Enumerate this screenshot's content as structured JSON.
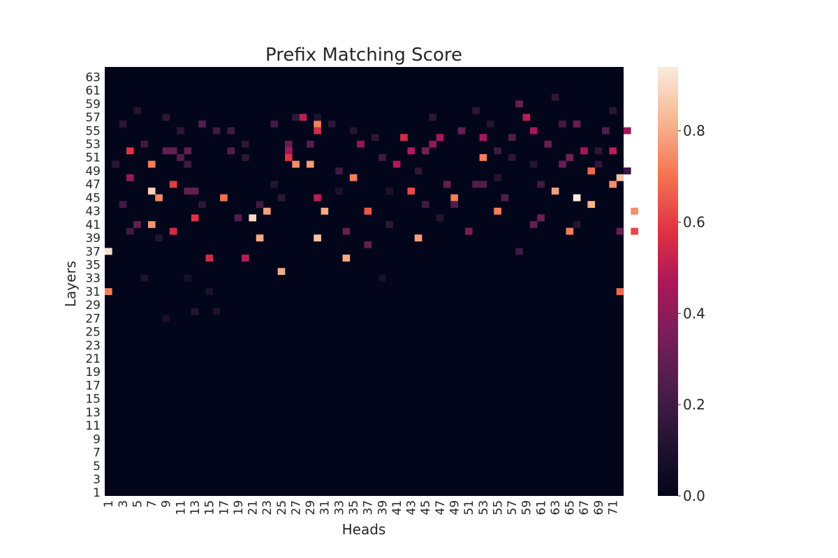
{
  "chart_data": {
    "type": "heatmap",
    "title": "Prefix Matching Score",
    "xlabel": "Heads",
    "ylabel": "Layers",
    "x": {
      "min": 1,
      "max": 72,
      "tick_values": [
        1,
        3,
        5,
        7,
        9,
        11,
        13,
        15,
        17,
        19,
        21,
        23,
        25,
        27,
        29,
        31,
        33,
        35,
        37,
        39,
        41,
        43,
        45,
        47,
        49,
        51,
        53,
        55,
        57,
        59,
        61,
        63,
        65,
        67,
        69,
        71
      ]
    },
    "y": {
      "min": 1,
      "max": 64,
      "tick_values": [
        1,
        3,
        5,
        7,
        9,
        11,
        13,
        15,
        17,
        19,
        21,
        23,
        25,
        27,
        29,
        31,
        33,
        35,
        37,
        39,
        41,
        43,
        45,
        47,
        49,
        51,
        53,
        55,
        57,
        59,
        61,
        63
      ]
    },
    "colorbar": {
      "range": [
        0,
        0.94
      ],
      "ticks": [
        "0.0",
        "0.2",
        "0.4",
        "0.6",
        "0.8"
      ],
      "tick_values": [
        0,
        0.2,
        0.4,
        0.6,
        0.8
      ],
      "colormap": "rocket"
    },
    "background_value": 0.0,
    "cells": [
      [
        1,
        37,
        0.92
      ],
      [
        1,
        31,
        0.72
      ],
      [
        7,
        46,
        0.88
      ],
      [
        8,
        45,
        0.74
      ],
      [
        7,
        50,
        0.72
      ],
      [
        7,
        41,
        0.76
      ],
      [
        10,
        40,
        0.55
      ],
      [
        4,
        48,
        0.42
      ],
      [
        4,
        52,
        0.58
      ],
      [
        10,
        47,
        0.6
      ],
      [
        13,
        42,
        0.58
      ],
      [
        12,
        46,
        0.3
      ],
      [
        13,
        46,
        0.3
      ],
      [
        12,
        52,
        0.3
      ],
      [
        9,
        52,
        0.3
      ],
      [
        10,
        52,
        0.3
      ],
      [
        11,
        51,
        0.25
      ],
      [
        15,
        36,
        0.55
      ],
      [
        20,
        36,
        0.5
      ],
      [
        17,
        45,
        0.7
      ],
      [
        21,
        42,
        0.9
      ],
      [
        22,
        39,
        0.8
      ],
      [
        23,
        43,
        0.78
      ],
      [
        26,
        51,
        0.58
      ],
      [
        27,
        50,
        0.75
      ],
      [
        25,
        34,
        0.8
      ],
      [
        26,
        53,
        0.3
      ],
      [
        26,
        52,
        0.45
      ],
      [
        28,
        57,
        0.5
      ],
      [
        30,
        56,
        0.72
      ],
      [
        30,
        55,
        0.55
      ],
      [
        29,
        50,
        0.78
      ],
      [
        30,
        45,
        0.5
      ],
      [
        30,
        39,
        0.85
      ],
      [
        31,
        43,
        0.8
      ],
      [
        34,
        36,
        0.8
      ],
      [
        35,
        48,
        0.72
      ],
      [
        37,
        43,
        0.65
      ],
      [
        34,
        40,
        0.3
      ],
      [
        36,
        53,
        0.4
      ],
      [
        41,
        50,
        0.48
      ],
      [
        42,
        54,
        0.55
      ],
      [
        43,
        52,
        0.48
      ],
      [
        43,
        46,
        0.62
      ],
      [
        44,
        39,
        0.78
      ],
      [
        45,
        52,
        0.35
      ],
      [
        46,
        53,
        0.4
      ],
      [
        47,
        54,
        0.45
      ],
      [
        49,
        45,
        0.72
      ],
      [
        48,
        47,
        0.3
      ],
      [
        51,
        40,
        0.35
      ],
      [
        53,
        51,
        0.72
      ],
      [
        53,
        54,
        0.45
      ],
      [
        55,
        43,
        0.72
      ],
      [
        59,
        57,
        0.5
      ],
      [
        60,
        55,
        0.45
      ],
      [
        60,
        41,
        0.3
      ],
      [
        61,
        42,
        0.32
      ],
      [
        63,
        46,
        0.78
      ],
      [
        66,
        45,
        0.94
      ],
      [
        67,
        52,
        0.45
      ],
      [
        65,
        40,
        0.72
      ],
      [
        68,
        44,
        0.82
      ],
      [
        68,
        49,
        0.68
      ],
      [
        71,
        47,
        0.75
      ],
      [
        72,
        48,
        0.85
      ],
      [
        71,
        52,
        0.5
      ],
      [
        72,
        40,
        0.3
      ],
      [
        73,
        55,
        0.45
      ],
      [
        74,
        43,
        0.75
      ],
      [
        74,
        40,
        0.62
      ],
      [
        72,
        31,
        0.68
      ],
      [
        65,
        51,
        0.35
      ],
      [
        64,
        50,
        0.3
      ],
      [
        45,
        44,
        0.2
      ],
      [
        19,
        42,
        0.25
      ],
      [
        18,
        52,
        0.25
      ],
      [
        33,
        49,
        0.2
      ],
      [
        37,
        38,
        0.3
      ],
      [
        22,
        44,
        0.2
      ],
      [
        29,
        53,
        0.25
      ],
      [
        4,
        40,
        0.2
      ],
      [
        5,
        41,
        0.3
      ],
      [
        6,
        53,
        0.2
      ],
      [
        14,
        56,
        0.25
      ],
      [
        16,
        55,
        0.2
      ],
      [
        24,
        56,
        0.2
      ],
      [
        12,
        50,
        0.2
      ],
      [
        18,
        55,
        0.2
      ],
      [
        39,
        51,
        0.2
      ],
      [
        50,
        55,
        0.3
      ],
      [
        55,
        52,
        0.2
      ],
      [
        58,
        59,
        0.3
      ],
      [
        61,
        47,
        0.2
      ],
      [
        64,
        56,
        0.2
      ],
      [
        70,
        55,
        0.25
      ],
      [
        66,
        56,
        0.3
      ],
      [
        52,
        47,
        0.25
      ],
      [
        53,
        47,
        0.25
      ],
      [
        56,
        45,
        0.25
      ],
      [
        58,
        37,
        0.2
      ],
      [
        49,
        44,
        0.25
      ],
      [
        62,
        53,
        0.3
      ],
      [
        57,
        54,
        0.25
      ],
      [
        3,
        44,
        0.2
      ],
      [
        2,
        50,
        0.15
      ],
      [
        3,
        56,
        0.15
      ],
      [
        9,
        57,
        0.15
      ],
      [
        11,
        55,
        0.15
      ],
      [
        20,
        51,
        0.15
      ],
      [
        27,
        57,
        0.15
      ],
      [
        32,
        56,
        0.15
      ],
      [
        38,
        54,
        0.15
      ],
      [
        44,
        49,
        0.15
      ],
      [
        46,
        57,
        0.15
      ],
      [
        52,
        58,
        0.15
      ],
      [
        57,
        51,
        0.15
      ],
      [
        63,
        60,
        0.15
      ],
      [
        69,
        52,
        0.15
      ],
      [
        71,
        58,
        0.15
      ],
      [
        13,
        28,
        0.12
      ],
      [
        16,
        28,
        0.1
      ],
      [
        6,
        33,
        0.1
      ],
      [
        15,
        31,
        0.1
      ],
      [
        9,
        27,
        0.08
      ],
      [
        39,
        33,
        0.08
      ],
      [
        40,
        41,
        0.15
      ],
      [
        30,
        57,
        0.1
      ],
      [
        12,
        33,
        0.08
      ],
      [
        5,
        58,
        0.12
      ],
      [
        20,
        53,
        0.15
      ],
      [
        14,
        44,
        0.15
      ],
      [
        25,
        45,
        0.15
      ],
      [
        35,
        55,
        0.12
      ],
      [
        47,
        42,
        0.12
      ],
      [
        55,
        48,
        0.12
      ],
      [
        60,
        50,
        0.12
      ],
      [
        69,
        50,
        0.15
      ],
      [
        73,
        49,
        0.18
      ],
      [
        66,
        41,
        0.12
      ],
      [
        33,
        46,
        0.1
      ],
      [
        8,
        39,
        0.12
      ],
      [
        40,
        46,
        0.1
      ],
      [
        24,
        47,
        0.12
      ],
      [
        54,
        56,
        0.12
      ]
    ]
  }
}
